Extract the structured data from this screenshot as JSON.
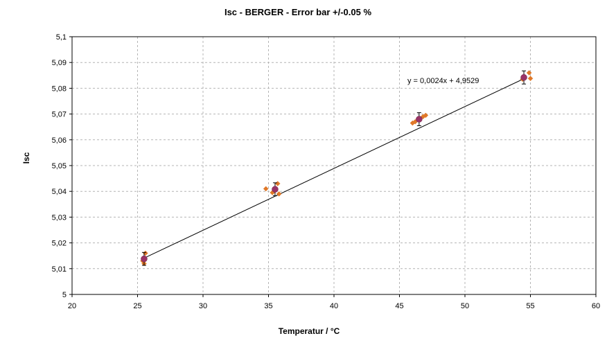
{
  "chart_data": {
    "type": "scatter",
    "title": "Isc - BERGER - Error bar +/-0.05 %",
    "xlabel": "Temperatur / °C",
    "ylabel": "Isc",
    "xlim": [
      20,
      60
    ],
    "ylim": [
      5.0,
      5.1
    ],
    "x_ticks": [
      "20",
      "25",
      "30",
      "35",
      "40",
      "45",
      "50",
      "55",
      "60"
    ],
    "y_ticks": [
      "5",
      "5,01",
      "5,02",
      "5,03",
      "5,04",
      "5,05",
      "5,06",
      "5,07",
      "5,08",
      "5,09",
      "5,1"
    ],
    "grid": true,
    "series": [
      {
        "kind": "measurements",
        "color": "#e07828",
        "marker": "diamond",
        "points": [
          {
            "x": 25.6,
            "y": 5.016
          },
          {
            "x": 25.4,
            "y": 5.013
          },
          {
            "x": 25.5,
            "y": 5.012
          },
          {
            "x": 34.8,
            "y": 5.041
          },
          {
            "x": 35.7,
            "y": 5.043
          },
          {
            "x": 35.3,
            "y": 5.0395
          },
          {
            "x": 35.8,
            "y": 5.039
          },
          {
            "x": 46.0,
            "y": 5.0665
          },
          {
            "x": 46.2,
            "y": 5.067
          },
          {
            "x": 46.8,
            "y": 5.069
          },
          {
            "x": 47.0,
            "y": 5.0695
          },
          {
            "x": 54.4,
            "y": 5.0835
          },
          {
            "x": 54.9,
            "y": 5.086
          },
          {
            "x": 55.0,
            "y": 5.0838
          }
        ]
      },
      {
        "kind": "mean_with_error",
        "color": "#993366",
        "marker": "circle",
        "error_pct": 0.05,
        "points": [
          {
            "x": 25.5,
            "y": 5.0138
          },
          {
            "x": 35.5,
            "y": 5.0408
          },
          {
            "x": 46.5,
            "y": 5.068
          },
          {
            "x": 54.5,
            "y": 5.0842
          }
        ]
      }
    ],
    "trendline": {
      "slope": 0.0024,
      "intercept": 4.9529,
      "x_range": [
        25.5,
        54.5
      ],
      "color": "#000000",
      "equation_label": "y = 0,0024x + 4,9529"
    }
  }
}
